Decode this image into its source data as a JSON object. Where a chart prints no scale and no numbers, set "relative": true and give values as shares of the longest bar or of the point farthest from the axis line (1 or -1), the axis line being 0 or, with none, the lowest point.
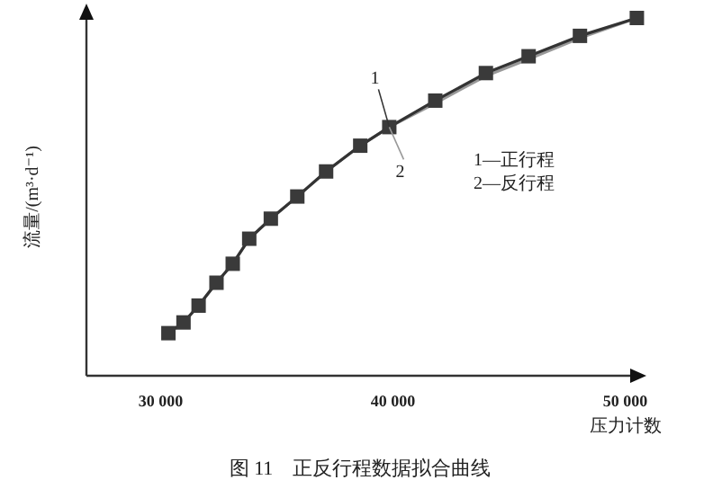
{
  "chart_data": {
    "type": "line",
    "relative": true,
    "title": "图 11　正反行程数据拟合曲线",
    "xlabel": "压力计数",
    "ylabel": "流量/(m³·d⁻¹)",
    "xlim": [
      26800,
      50600
    ],
    "xticks": [
      {
        "value": 30000,
        "label": "30 000"
      },
      {
        "value": 40000,
        "label": "40 000"
      },
      {
        "value": 50000,
        "label": "50 000"
      }
    ],
    "tick_labels": "x",
    "grid": false,
    "x": [
      30330,
      30980,
      31630,
      32400,
      33100,
      33810,
      34740,
      35880,
      37120,
      38590,
      39840,
      41820,
      44000,
      45840,
      48050,
      50500
    ],
    "series": [
      {
        "name": "1",
        "color": "#333333",
        "marker": "square",
        "values": [
          0.119,
          0.149,
          0.196,
          0.26,
          0.313,
          0.383,
          0.439,
          0.501,
          0.571,
          0.643,
          0.695,
          0.769,
          0.846,
          0.893,
          0.95,
          1
        ]
      },
      {
        "name": "2",
        "color": "#999999",
        "marker": "none",
        "values": [
          0.119,
          0.149,
          0.196,
          0.26,
          0.313,
          0.383,
          0.439,
          0.501,
          0.571,
          0.643,
          0.695,
          0.762,
          0.838,
          0.885,
          0.944,
          1
        ]
      }
    ],
    "annotations": [
      "1—正行程",
      "2—反行程"
    ]
  }
}
